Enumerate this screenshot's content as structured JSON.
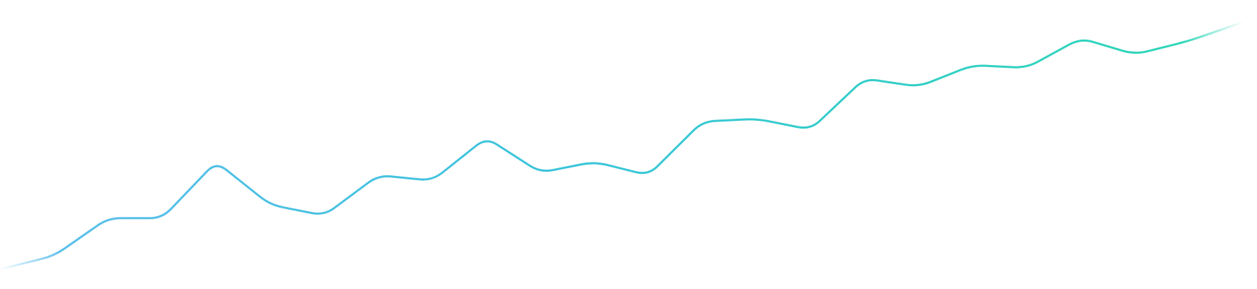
{
  "chart_data": {
    "type": "line",
    "title": "",
    "xlabel": "",
    "ylabel": "",
    "grid": false,
    "legend": "none",
    "axes_visible": false,
    "line_style": "smooth gradient line",
    "colors": {
      "gradient_start": "#5BBFEA",
      "gradient_mid": "#39C4DA",
      "gradient_end": "#2ED6B8"
    },
    "ylim": [
      0,
      100
    ],
    "series": [
      {
        "values": [
          5,
          10,
          24,
          24,
          45,
          29,
          25,
          40,
          38,
          54,
          41,
          45,
          40,
          60,
          61,
          57,
          76,
          73,
          81,
          80,
          91,
          85,
          90,
          97
        ]
      }
    ]
  }
}
